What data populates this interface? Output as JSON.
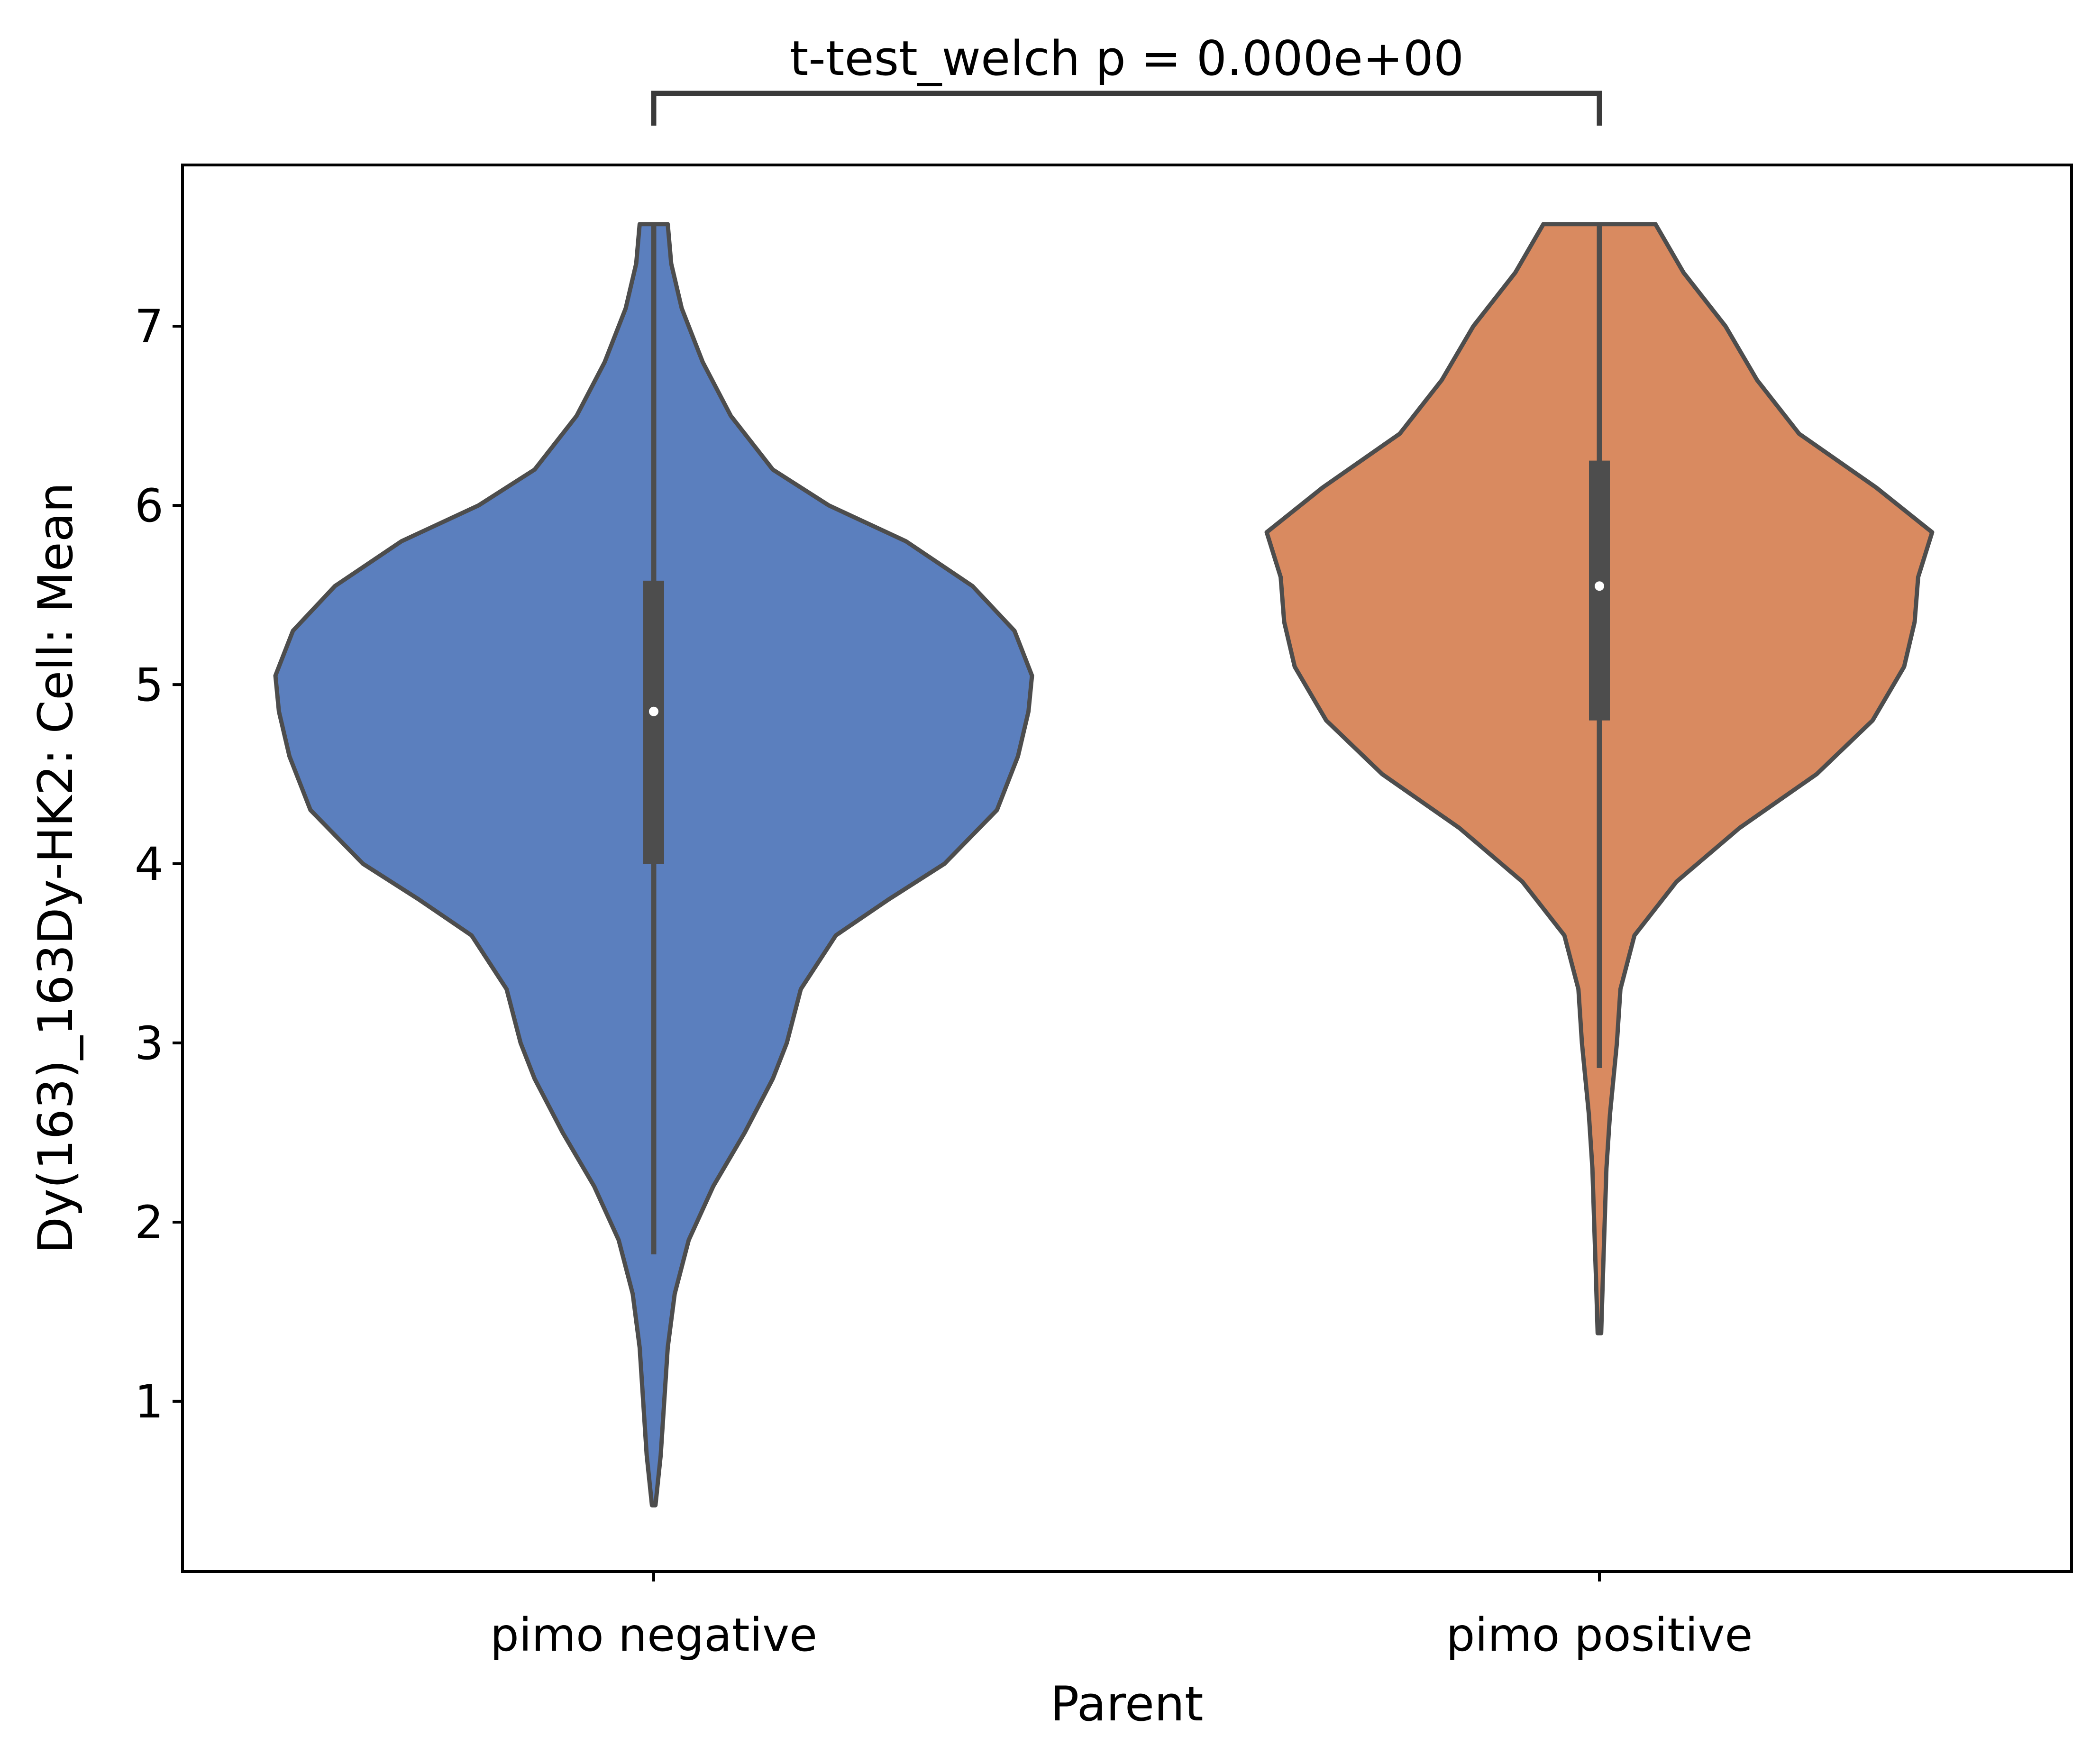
{
  "chart_data": {
    "type": "violin",
    "xlabel": "Parent",
    "ylabel": "Dy(163)_163Dy-HK2: Cell: Mean",
    "ylim": [
      0.05,
      7.9
    ],
    "yticks": [
      1,
      2,
      3,
      4,
      5,
      6,
      7
    ],
    "categories": [
      "pimo negative",
      "pimo positive"
    ],
    "colors": {
      "pimo negative": "#5b7fbe",
      "pimo positive": "#d98a60",
      "edge": "#4d4d4d",
      "box": "#4d4d4d",
      "median": "#ffffff"
    },
    "series": [
      {
        "category": "pimo negative",
        "min": 0.42,
        "max": 7.57,
        "q1": 4.0,
        "median": 4.85,
        "q3": 5.58,
        "whisker_low": 1.82,
        "whisker_high": 7.57,
        "density": [
          [
            0.42,
            0.005
          ],
          [
            0.7,
            0.02
          ],
          [
            1.0,
            0.03
          ],
          [
            1.3,
            0.04
          ],
          [
            1.6,
            0.06
          ],
          [
            1.9,
            0.1
          ],
          [
            2.2,
            0.17
          ],
          [
            2.5,
            0.26
          ],
          [
            2.8,
            0.34
          ],
          [
            3.0,
            0.38
          ],
          [
            3.3,
            0.42
          ],
          [
            3.6,
            0.52
          ],
          [
            3.8,
            0.67
          ],
          [
            4.0,
            0.83
          ],
          [
            4.3,
            0.98
          ],
          [
            4.6,
            1.04
          ],
          [
            4.85,
            1.07
          ],
          [
            5.05,
            1.08
          ],
          [
            5.3,
            1.03
          ],
          [
            5.55,
            0.91
          ],
          [
            5.8,
            0.72
          ],
          [
            6.0,
            0.5
          ],
          [
            6.2,
            0.34
          ],
          [
            6.5,
            0.22
          ],
          [
            6.8,
            0.14
          ],
          [
            7.1,
            0.08
          ],
          [
            7.35,
            0.05
          ],
          [
            7.57,
            0.04
          ]
        ]
      },
      {
        "category": "pimo positive",
        "min": 1.38,
        "max": 7.57,
        "q1": 4.8,
        "median": 5.55,
        "q3": 6.25,
        "whisker_low": 2.86,
        "whisker_high": 7.57,
        "density": [
          [
            1.38,
            0.005
          ],
          [
            1.7,
            0.01
          ],
          [
            2.0,
            0.015
          ],
          [
            2.3,
            0.02
          ],
          [
            2.6,
            0.03
          ],
          [
            3.0,
            0.05
          ],
          [
            3.3,
            0.06
          ],
          [
            3.6,
            0.1
          ],
          [
            3.9,
            0.22
          ],
          [
            4.2,
            0.4
          ],
          [
            4.5,
            0.62
          ],
          [
            4.8,
            0.78
          ],
          [
            5.1,
            0.87
          ],
          [
            5.35,
            0.9
          ],
          [
            5.6,
            0.91
          ],
          [
            5.85,
            0.95
          ],
          [
            6.1,
            0.79
          ],
          [
            6.4,
            0.57
          ],
          [
            6.7,
            0.45
          ],
          [
            7.0,
            0.36
          ],
          [
            7.3,
            0.24
          ],
          [
            7.57,
            0.16
          ]
        ]
      }
    ],
    "annotation": {
      "text": "t-test_welch p = 0.000e+00",
      "from": "pimo negative",
      "to": "pimo positive"
    }
  }
}
